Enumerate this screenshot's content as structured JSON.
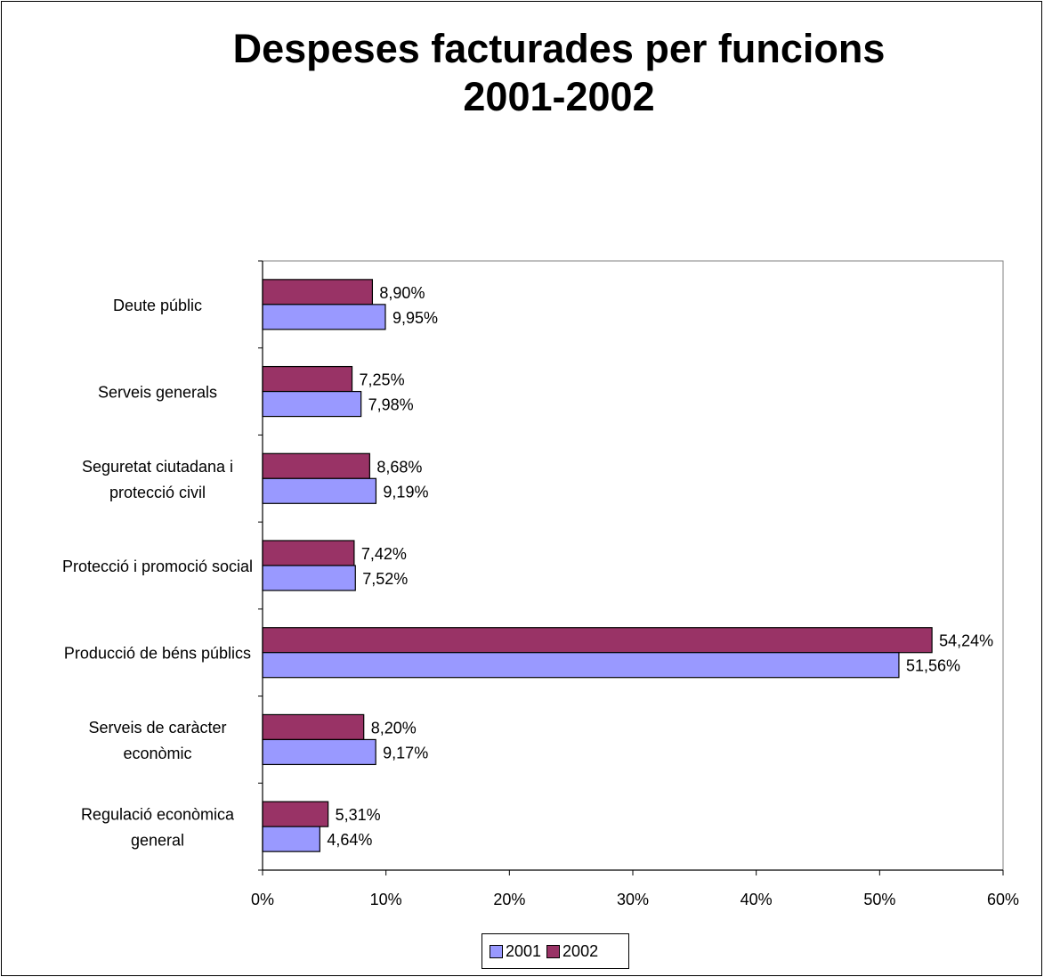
{
  "chart_data": {
    "type": "bar",
    "orientation": "horizontal",
    "title": "Despeses facturades per funcions",
    "subtitle": "2001-2002",
    "categories": [
      [
        "Deute públic"
      ],
      [
        "Serveis generals"
      ],
      [
        "Seguretat ciutadana i",
        "protecció civil"
      ],
      [
        "Protecció i promoció social"
      ],
      [
        "Producció de béns públics"
      ],
      [
        "Serveis de caràcter",
        "econòmic"
      ],
      [
        "Regulació econòmica",
        "general"
      ]
    ],
    "series": [
      {
        "name": "2002",
        "color": "#993366",
        "values": [
          8.9,
          7.25,
          8.68,
          7.42,
          54.24,
          8.2,
          5.31
        ],
        "labels": [
          "8,90%",
          "7,25%",
          "8,68%",
          "7,42%",
          "54,24%",
          "8,20%",
          "5,31%"
        ]
      },
      {
        "name": "2001",
        "color": "#9999ff",
        "values": [
          9.95,
          7.98,
          9.19,
          7.52,
          51.56,
          9.17,
          4.64
        ],
        "labels": [
          "9,95%",
          "7,98%",
          "9,19%",
          "7,52%",
          "51,56%",
          "9,17%",
          "4,64%"
        ]
      }
    ],
    "xlim": [
      0,
      60
    ],
    "xticks": [
      "0%",
      "10%",
      "20%",
      "30%",
      "40%",
      "50%",
      "60%"
    ],
    "grid": false,
    "legend": {
      "position": "bottom",
      "items": [
        {
          "label": "2001",
          "color": "#9999ff"
        },
        {
          "label": "2002",
          "color": "#993366"
        }
      ]
    }
  }
}
